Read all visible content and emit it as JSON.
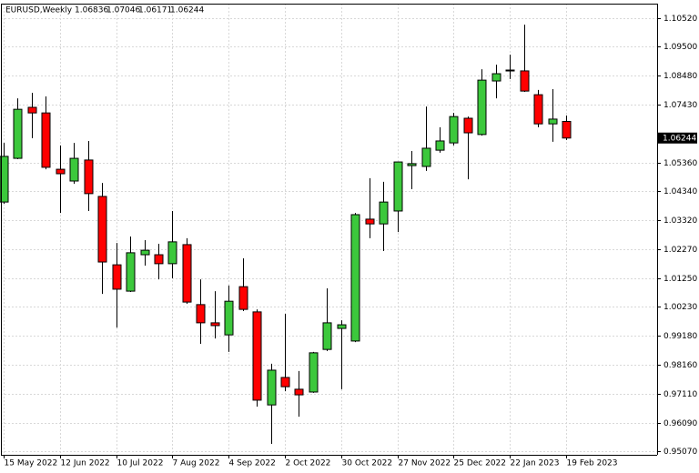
{
  "chart_data": {
    "type": "candlestick",
    "title": "EURUSD,Weekly",
    "x": [
      "15 May 2022",
      null,
      null,
      null,
      "12 Jun 2022",
      null,
      null,
      null,
      "10 Jul 2022",
      null,
      null,
      null,
      "7 Aug 2022",
      null,
      null,
      null,
      "4 Sep 2022",
      null,
      null,
      null,
      "2 Oct 2022",
      null,
      null,
      null,
      "30 Oct 2022",
      null,
      null,
      null,
      "27 Nov 2022",
      null,
      null,
      null,
      "25 Dec 2022",
      null,
      null,
      null,
      "22 Jan 2023",
      null,
      null,
      null,
      "19 Feb 2023"
    ],
    "open": [
      1.0396,
      1.0552,
      1.0734,
      1.0714,
      1.0513,
      1.0471,
      1.0546,
      1.0416,
      1.0172,
      1.0078,
      1.0208,
      1.0208,
      1.0176,
      1.0244,
      1.003,
      0.9965,
      0.9922,
      1.0094,
      1.0004,
      0.9672,
      0.977,
      0.9728,
      0.9718,
      0.987,
      0.9945,
      0.99,
      1.0335,
      1.0318,
      1.0364,
      1.0526,
      1.0523,
      1.0581,
      1.0607,
      1.0695,
      1.0637,
      1.0828,
      1.0867,
      1.0864,
      1.0779,
      1.0675,
      1.06836
    ],
    "high": [
      1.0607,
      1.0766,
      1.0786,
      1.0773,
      1.0598,
      1.0607,
      1.0614,
      1.0464,
      1.025,
      1.0273,
      1.026,
      1.0247,
      1.0364,
      1.0267,
      1.012,
      1.0078,
      1.0098,
      1.0195,
      1.0013,
      0.9819,
      0.9997,
      0.9793,
      0.9861,
      1.0088,
      0.9974,
      1.0357,
      1.0481,
      1.0468,
      1.0539,
      1.0578,
      1.0737,
      1.0663,
      1.0714,
      1.0701,
      1.087,
      1.0886,
      1.0922,
      1.1029,
      1.0796,
      1.0799,
      1.07046
    ],
    "low": [
      1.039,
      1.0549,
      1.0624,
      1.0513,
      1.0357,
      1.0461,
      1.0364,
      1.0068,
      0.9948,
      1.0075,
      1.0169,
      1.012,
      1.0124,
      1.0033,
      0.989,
      0.9909,
      0.9861,
      1.0007,
      0.9666,
      0.9533,
      0.9721,
      0.963,
      0.9715,
      0.9864,
      0.9728,
      0.9896,
      1.0267,
      1.0221,
      1.0289,
      1.0442,
      1.0507,
      1.0572,
      1.0598,
      1.0477,
      1.0633,
      1.0766,
      1.0835,
      1.0789,
      1.0663,
      1.0611,
      1.06171
    ],
    "close": [
      1.0559,
      1.0727,
      1.0714,
      1.052,
      1.0497,
      1.0552,
      1.0426,
      1.0182,
      1.0085,
      1.0215,
      1.0224,
      1.0176,
      1.0254,
      1.0039,
      0.9965,
      0.9955,
      1.0042,
      1.0013,
      0.9689,
      0.9796,
      0.9737,
      0.9708,
      0.9858,
      0.9965,
      0.9958,
      1.0351,
      1.0318,
      1.0396,
      1.0539,
      1.0533,
      1.0588,
      1.0614,
      1.0701,
      1.0643,
      1.0831,
      1.0854,
      1.0865,
      1.0792,
      1.0675,
      1.0692,
      1.06244
    ],
    "up_color": "#3cc83c",
    "down_color": "#ff0000",
    "ylim": [
      0.9494,
      1.1104
    ],
    "yticks": [
      {
        "value": 1.1052,
        "label": "1.10520"
      },
      {
        "value": 1.095,
        "label": "1.09500"
      },
      {
        "value": 1.0848,
        "label": "1.08480"
      },
      {
        "value": 1.0743,
        "label": "1.07430"
      },
      {
        "value": 1.0536,
        "label": "1.05360"
      },
      {
        "value": 1.0434,
        "label": "1.04340"
      },
      {
        "value": 1.0332,
        "label": "1.03320"
      },
      {
        "value": 1.0227,
        "label": "1.02270"
      },
      {
        "value": 1.0125,
        "label": "1.01250"
      },
      {
        "value": 1.0023,
        "label": "1.00230"
      },
      {
        "value": 0.9918,
        "label": "0.99180"
      },
      {
        "value": 0.9816,
        "label": "0.98160"
      },
      {
        "value": 0.9711,
        "label": "0.97110"
      },
      {
        "value": 0.9609,
        "label": "0.96090"
      },
      {
        "value": 0.9507,
        "label": "0.95070"
      }
    ],
    "grid": true
  }
}
